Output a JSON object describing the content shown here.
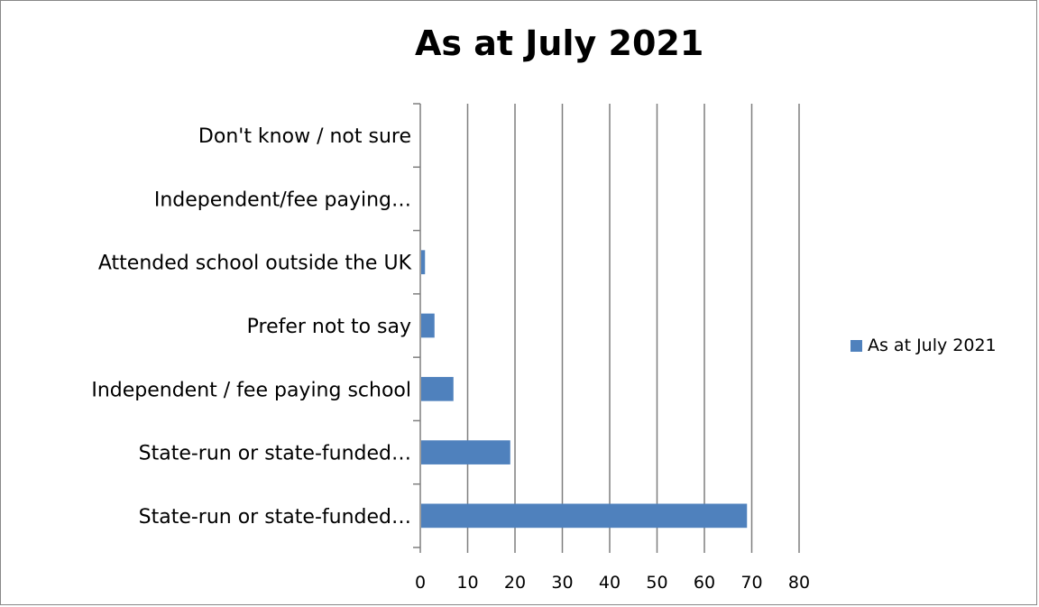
{
  "chart_data": {
    "type": "bar",
    "orientation": "horizontal",
    "title": "As at July 2021",
    "categories": [
      "Don't know / not sure",
      "Independent/fee paying…",
      "Attended school outside the UK",
      "Prefer not to say",
      "Independent / fee paying school",
      "State-run or state-funded…",
      "State-run or state-funded…"
    ],
    "series": [
      {
        "name": "As at July 2021",
        "values": [
          0,
          0,
          1,
          3,
          7,
          19,
          69
        ],
        "color": "#4F81BD"
      }
    ],
    "xlim": [
      0,
      80
    ],
    "x_ticks": [
      0,
      10,
      20,
      30,
      40,
      50,
      60,
      70,
      80
    ],
    "grid": true,
    "legend_position": "right"
  }
}
